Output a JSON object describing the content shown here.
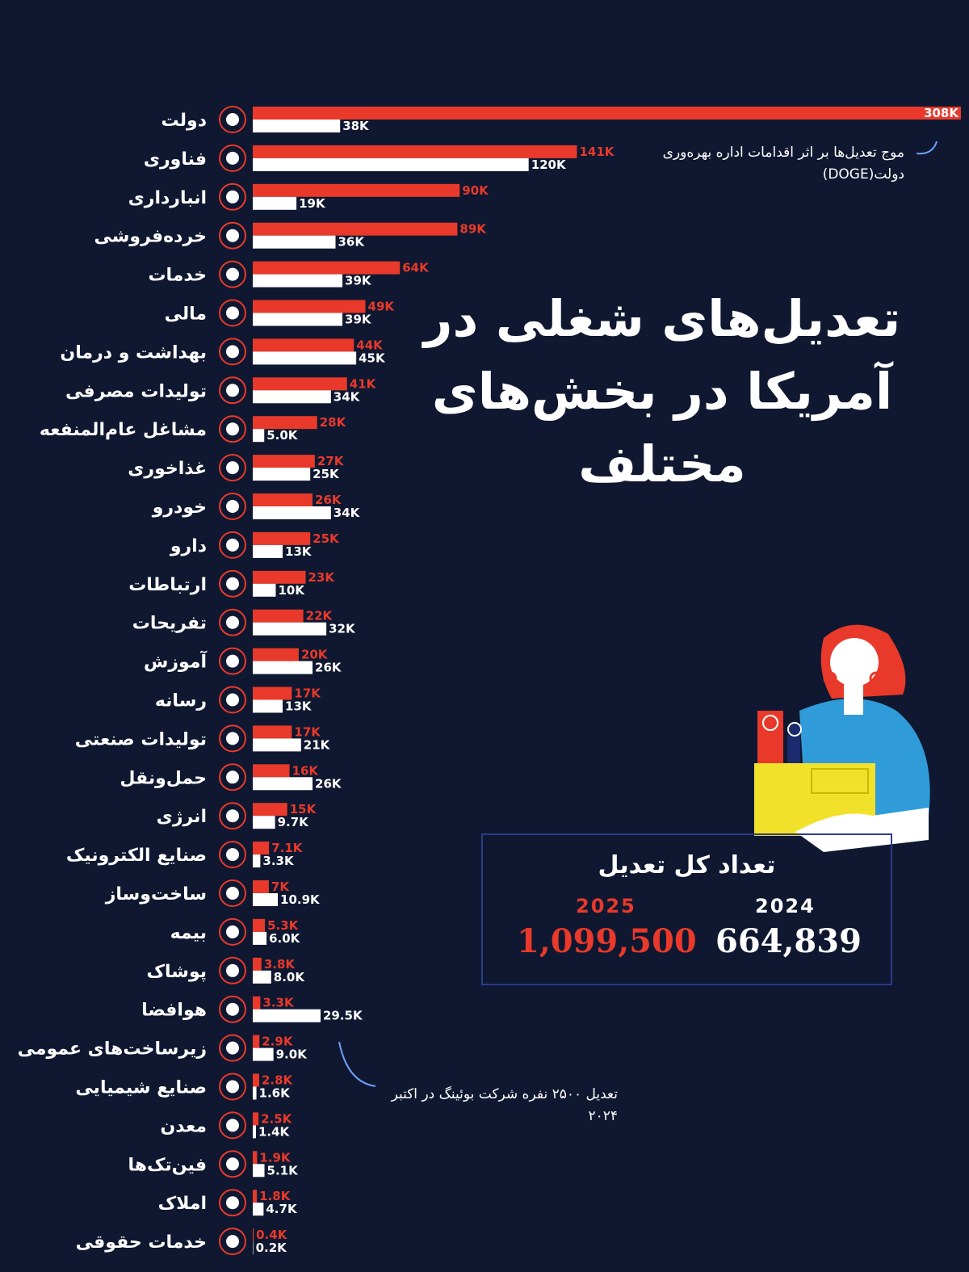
{
  "chart_data": {
    "type": "bar",
    "title": "تعدیل‌های شغلی در آمریکا در بخش‌های مختلف",
    "categories": [
      "دولت",
      "فناوری",
      "انبارداری",
      "خرده‌فروشی",
      "خدمات",
      "مالی",
      "بهداشت و درمان",
      "تولیدات مصرفی",
      "مشاغل عام‌المنفعه",
      "غذاخوری",
      "خودرو",
      "دارو",
      "ارتباطات",
      "تفریحات",
      "آموزش",
      "رسانه",
      "تولیدات صنعتی",
      "حمل‌ونقل",
      "انرژی",
      "صنایع الکترونیک",
      "ساخت‌وساز",
      "بیمه",
      "پوشاک",
      "هوافضا",
      "زیرساخت‌های عمومی",
      "صنایع شیمیایی",
      "معدن",
      "فین‌تک‌ها",
      "املاک",
      "خدمات حقوقی"
    ],
    "series": [
      {
        "name": "2025",
        "color": "#e8392b",
        "values": [
          308000,
          141000,
          90000,
          89000,
          64000,
          49000,
          44000,
          41000,
          28000,
          27000,
          26000,
          25000,
          23000,
          22000,
          20000,
          17000,
          17000,
          16000,
          15000,
          7100,
          7000,
          5300,
          3800,
          3300,
          2900,
          2800,
          2500,
          1900,
          1800,
          400
        ],
        "value_labels": [
          "308K",
          "141K",
          "90K",
          "89K",
          "64K",
          "49K",
          "44K",
          "41K",
          "28K",
          "27K",
          "26K",
          "25K",
          "23K",
          "22K",
          "20K",
          "17K",
          "17K",
          "16K",
          "15K",
          "7.1K",
          "7K",
          "5.3K",
          "3.8K",
          "3.3K",
          "2.9K",
          "2.8K",
          "2.5K",
          "1.9K",
          "1.8K",
          "0.4K"
        ]
      },
      {
        "name": "2024",
        "color": "#ffffff",
        "values": [
          38000,
          120000,
          19000,
          36000,
          39000,
          39000,
          45000,
          34000,
          5000,
          25000,
          34000,
          13000,
          10000,
          32000,
          26000,
          13000,
          21000,
          26000,
          9700,
          3300,
          10900,
          6000,
          8000,
          29500,
          9000,
          1600,
          1400,
          5100,
          4700,
          200
        ],
        "value_labels": [
          "38K",
          "120K",
          "19K",
          "36K",
          "39K",
          "39K",
          "45K",
          "34K",
          "5.0K",
          "25K",
          "34K",
          "13K",
          "10K",
          "32K",
          "26K",
          "13K",
          "21K",
          "26K",
          "9.7K",
          "3.3K",
          "10.9K",
          "6.0K",
          "8.0K",
          "29.5K",
          "9.0K",
          "1.6K",
          "1.4K",
          "5.1K",
          "4.7K",
          "0.2K"
        ]
      }
    ],
    "annotations": [
      "موج تعدیل‌ها بر اثر اقدامات اداره بهره‌وری دولت(DOGE)",
      "تعدیل ۲۵۰۰ نفره شرکت بوئینگ در اکتبر ۲۰۲۴"
    ],
    "totals": {
      "title": "تعداد کل تعدیل",
      "values": [
        {
          "value": 1099500,
          "label": "1,099,500"
        },
        {
          "value": 664839,
          "label": "664,839"
        }
      ]
    }
  }
}
